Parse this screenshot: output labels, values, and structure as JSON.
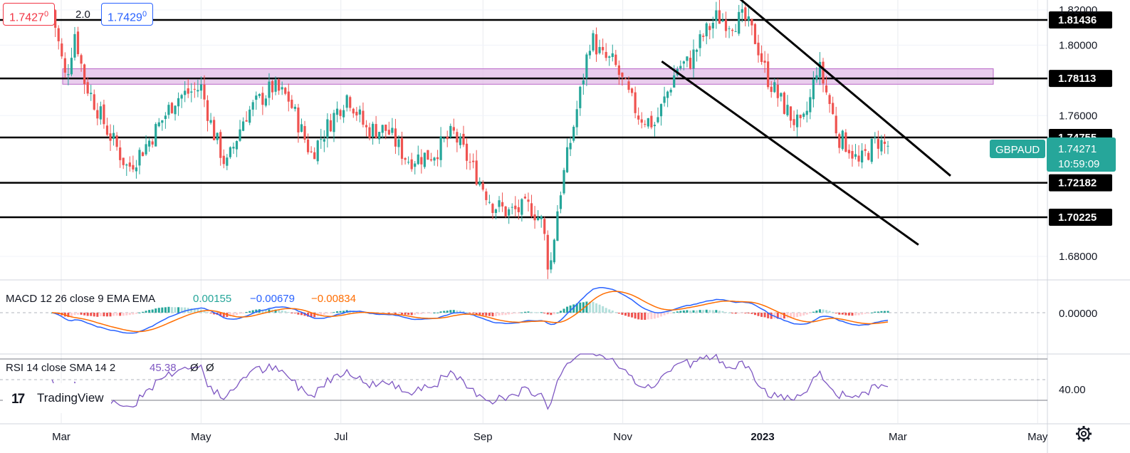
{
  "quote": {
    "bid": "1.7427",
    "bid_sup": "0",
    "spread": "2.0",
    "ask": "1.7429",
    "ask_sup": "0"
  },
  "symbol": {
    "name": "GBPAUD",
    "last": "1.74271",
    "countdown": "10:59:09"
  },
  "brand": {
    "logo_mark": "17",
    "name": "TradingView"
  },
  "colors": {
    "up": "#26a69a",
    "down": "#ef5350",
    "macd": "#2962ff",
    "signal": "#ff6d00",
    "rsi": "#7e57c2",
    "zone": "#e1bee7",
    "zone_border": "#ba68c8",
    "label_bg": "#000000"
  },
  "macd": {
    "label": "MACD 12 26 close 9 EMA EMA",
    "hist": "0.00155",
    "macd": "−0.00679",
    "signal": "−0.00834",
    "axis_label": "0.00000"
  },
  "rsi": {
    "label": "RSI 14 close SMA 14 2",
    "value": "45.38",
    "extra1": "Ø",
    "extra2": "Ø",
    "axis_label": "40.00"
  },
  "settings_icon": "gear-icon",
  "chart_data": {
    "type": "candlestick",
    "symbol": "GBPAUD",
    "timeframe": "daily",
    "x_labels": [
      "Mar",
      "May",
      "Jul",
      "Sep",
      "Nov",
      "2023",
      "Mar",
      "May"
    ],
    "y_labels": [
      "1.82000",
      "1.80000",
      "1.76000",
      "1.68000"
    ],
    "ylim": [
      1.6665,
      1.8298
    ],
    "levels": [
      "1.81436",
      "1.78113",
      "1.74755",
      "1.72182",
      "1.70225"
    ],
    "resistance_zone": [
      1.7778,
      1.7866
    ],
    "close_path": [
      [
        "2022-02-25",
        1.82
      ],
      [
        "2022-03-03",
        1.78
      ],
      [
        "2022-03-07",
        1.808
      ],
      [
        "2022-03-11",
        1.78
      ],
      [
        "2022-03-21",
        1.752
      ],
      [
        "2022-03-30",
        1.73
      ],
      [
        "2022-04-08",
        1.745
      ],
      [
        "2022-04-20",
        1.77
      ],
      [
        "2022-05-01",
        1.776
      ],
      [
        "2022-05-06",
        1.752
      ],
      [
        "2022-05-12",
        1.731
      ],
      [
        "2022-05-20",
        1.76
      ],
      [
        "2022-06-01",
        1.776
      ],
      [
        "2022-06-08",
        1.77
      ],
      [
        "2022-06-18",
        1.738
      ],
      [
        "2022-06-28",
        1.76
      ],
      [
        "2022-07-04",
        1.772
      ],
      [
        "2022-07-12",
        1.752
      ],
      [
        "2022-07-21",
        1.752
      ],
      [
        "2022-07-30",
        1.735
      ],
      [
        "2022-08-10",
        1.738
      ],
      [
        "2022-08-19",
        1.75
      ],
      [
        "2022-08-31",
        1.722
      ],
      [
        "2022-09-05",
        1.71
      ],
      [
        "2022-09-12",
        1.705
      ],
      [
        "2022-09-22",
        1.708
      ],
      [
        "2022-09-27",
        1.699
      ],
      [
        "2022-09-30",
        1.67
      ],
      [
        "2022-10-04",
        1.712
      ],
      [
        "2022-10-08",
        1.738
      ],
      [
        "2022-10-13",
        1.77
      ],
      [
        "2022-10-18",
        1.805
      ],
      [
        "2022-10-23",
        1.793
      ],
      [
        "2022-10-28",
        1.79
      ],
      [
        "2022-11-04",
        1.77
      ],
      [
        "2022-11-08",
        1.76
      ],
      [
        "2022-11-15",
        1.755
      ],
      [
        "2022-11-25",
        1.788
      ],
      [
        "2022-11-30",
        1.79
      ],
      [
        "2022-12-06",
        1.805
      ],
      [
        "2022-12-12",
        1.816
      ],
      [
        "2022-12-18",
        1.813
      ],
      [
        "2022-12-24",
        1.815
      ],
      [
        "2022-12-29",
        1.803
      ],
      [
        "2023-01-03",
        1.782
      ],
      [
        "2023-01-08",
        1.77
      ],
      [
        "2023-01-13",
        1.76
      ],
      [
        "2023-01-18",
        1.752
      ],
      [
        "2023-01-22",
        1.77
      ],
      [
        "2023-01-25",
        1.79
      ],
      [
        "2023-01-30",
        1.768
      ],
      [
        "2023-02-03",
        1.748
      ],
      [
        "2023-02-08",
        1.742
      ],
      [
        "2023-02-12",
        1.732
      ],
      [
        "2023-02-15",
        1.738
      ],
      [
        "2023-02-20",
        1.746
      ],
      [
        "2023-02-23",
        1.743
      ],
      [
        "2023-02-26",
        1.743
      ]
    ],
    "channel_lines": [
      {
        "from": [
          "2022-12-20",
          1.8286
        ],
        "to": [
          "2023-03-24",
          1.7258
        ]
      },
      {
        "from": [
          "2022-11-18",
          1.7908
        ],
        "to": [
          "2023-03-10",
          1.6866
        ]
      }
    ],
    "macd": {
      "macd": -0.00679,
      "signal": -0.00834,
      "hist": 0.00155,
      "y_labels": [
        "0.00000"
      ]
    },
    "rsi": {
      "value": 45.38,
      "y_labels": [
        "40.00"
      ]
    }
  }
}
